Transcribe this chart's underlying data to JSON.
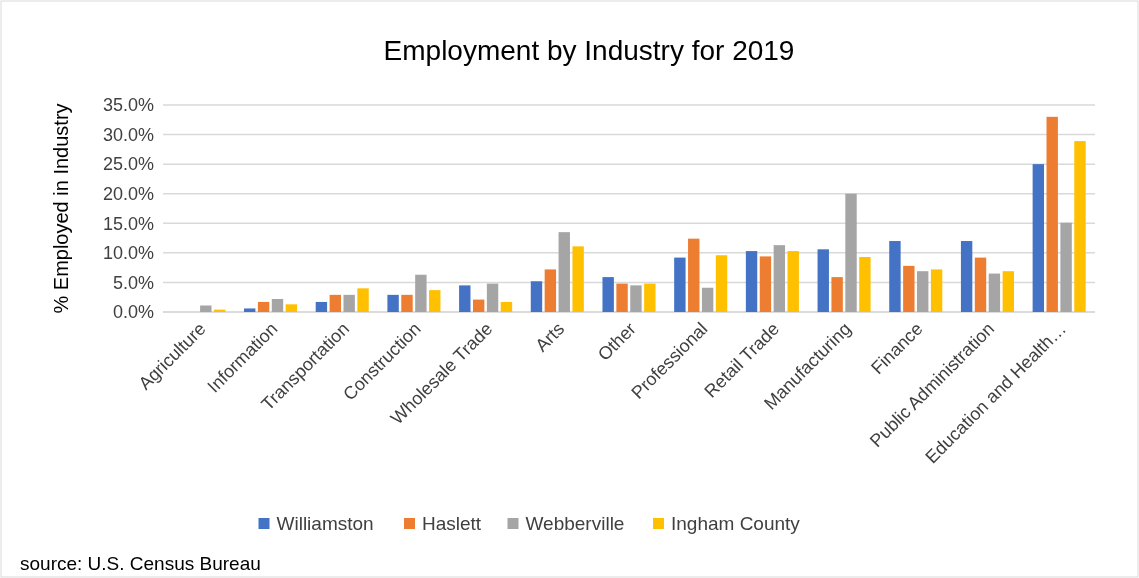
{
  "chart_data": {
    "type": "bar",
    "title": "Employment by Industry for 2019",
    "ylabel": "% Employed in Industry",
    "categories": [
      "Agriculture",
      "Information",
      "Transportation",
      "Construction",
      "Wholesale Trade",
      "Arts",
      "Other",
      "Professional",
      "Retail Trade",
      "Manufacturing",
      "Finance",
      "Public Administration",
      "Education and Health…"
    ],
    "series": [
      {
        "name": "Williamston",
        "color": "#4472c4",
        "values": [
          0,
          0.6,
          1.7,
          2.9,
          4.5,
          5.2,
          5.9,
          9.2,
          10.3,
          10.6,
          12.0,
          12.0,
          25.0
        ]
      },
      {
        "name": "Haslett",
        "color": "#ed7d31",
        "values": [
          0,
          1.7,
          2.9,
          2.9,
          2.1,
          7.2,
          4.8,
          12.4,
          9.4,
          5.9,
          7.8,
          9.2,
          33.0
        ]
      },
      {
        "name": "Webberville",
        "color": "#a5a5a5",
        "values": [
          1.1,
          2.2,
          2.9,
          6.3,
          4.8,
          13.5,
          4.5,
          4.1,
          11.3,
          20.0,
          6.9,
          6.5,
          15.1
        ]
      },
      {
        "name": "Ingham County",
        "color": "#ffc000",
        "values": [
          0.4,
          1.3,
          4.0,
          3.7,
          1.7,
          11.1,
          4.8,
          9.6,
          10.3,
          9.3,
          7.2,
          6.9,
          28.9
        ]
      }
    ],
    "ylim": [
      0,
      35
    ],
    "yticks": [
      {
        "value": 0,
        "label": "0.0%"
      },
      {
        "value": 5,
        "label": "5.0%"
      },
      {
        "value": 10,
        "label": "10.0%"
      },
      {
        "value": 15,
        "label": "15.0%"
      },
      {
        "value": 20,
        "label": "20.0%"
      },
      {
        "value": 25,
        "label": "25.0%"
      },
      {
        "value": 30,
        "label": "30.0%"
      },
      {
        "value": 35,
        "label": "35.0%"
      }
    ],
    "grid": "y",
    "legend": "bottom",
    "annotations": [
      "source: U.S. Census Bureau"
    ]
  }
}
